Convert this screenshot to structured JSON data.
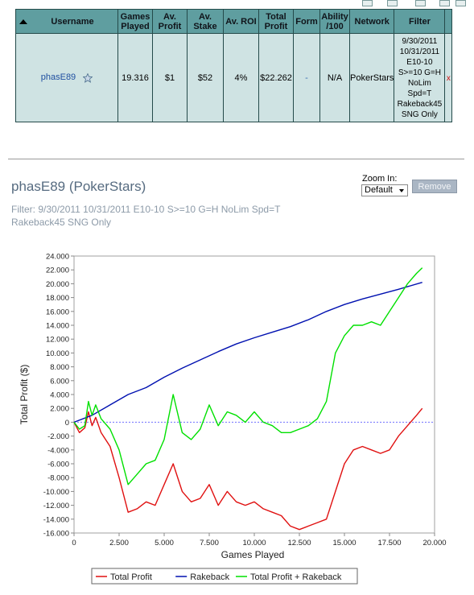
{
  "table": {
    "headers": [
      "Username",
      "Games Played",
      "Av. Profit",
      "Av. Stake",
      "Av. ROI",
      "Total Profit",
      "Form",
      "Ability /100",
      "Network",
      "Filter"
    ],
    "row": {
      "username": "phasE89",
      "games_played": "19.316",
      "av_profit": "$1",
      "av_stake": "$52",
      "av_roi": "4%",
      "total_profit": "$22.262",
      "form": "-",
      "ability": "N/A",
      "network": "PokerStars",
      "filter": "9/30/2011 10/31/2011 E10-10 S>=10 G=H NoLim Spd=T Rakeback45 SNG Only",
      "remove": "x"
    }
  },
  "panel": {
    "title": "phasE89 (PokerStars)",
    "filter_text": "Filter: 9/30/2011 10/31/2011 E10-10 S>=10 G=H NoLim Spd=T Rakeback45 SNG Only",
    "zoom_label": "Zoom In:",
    "zoom_value": "Default",
    "remove_label": "Remove"
  },
  "colors": {
    "header_bg": "#5f9ea0",
    "row_bg": "#cfe3e3",
    "total_profit": "#e01010",
    "rakeback": "#0010b0",
    "total_plus_rakeback": "#00e000"
  },
  "chart_data": {
    "type": "line",
    "xlabel": "Games Played",
    "ylabel": "Total Profit ($)",
    "xlim": [
      0,
      20000
    ],
    "ylim": [
      -16000,
      24000
    ],
    "x_ticks": [
      "0",
      "2.500",
      "5.000",
      "7.500",
      "10.000",
      "12.500",
      "15.000",
      "17.500",
      "20.000"
    ],
    "y_ticks": [
      "24.000",
      "22.000",
      "20.000",
      "18.000",
      "16.000",
      "14.000",
      "12.000",
      "10.000",
      "8.000",
      "6.000",
      "4.000",
      "2.000",
      "0",
      "-2.000",
      "-4.000",
      "-6.000",
      "-8.000",
      "-10.000",
      "-12.000",
      "-14.000",
      "-16.000"
    ],
    "legend_position": "bottom",
    "zero_line": true,
    "series": [
      {
        "name": "Total Profit",
        "color": "#e01010",
        "x": [
          0,
          300,
          600,
          800,
          1000,
          1200,
          1500,
          2000,
          2500,
          3000,
          3500,
          4000,
          4500,
          5000,
          5500,
          6000,
          6500,
          7000,
          7500,
          8000,
          8500,
          9000,
          9500,
          10000,
          10500,
          11000,
          11500,
          12000,
          12500,
          13000,
          13500,
          14000,
          14500,
          15000,
          15500,
          16000,
          16500,
          17000,
          17500,
          18000,
          18500,
          19000,
          19316
        ],
        "y": [
          0,
          -1500,
          -800,
          1500,
          -500,
          700,
          -1500,
          -3500,
          -8000,
          -13000,
          -12500,
          -11500,
          -12000,
          -9000,
          -6000,
          -10000,
          -11500,
          -11000,
          -9000,
          -12000,
          -10000,
          -11500,
          -12000,
          -11500,
          -12500,
          -13000,
          -13500,
          -15000,
          -15500,
          -15000,
          -14500,
          -14000,
          -10000,
          -6000,
          -4000,
          -3500,
          -4000,
          -4500,
          -4000,
          -2000,
          -500,
          1000,
          2000
        ]
      },
      {
        "name": "Rakeback",
        "color": "#0010b0",
        "x": [
          0,
          1000,
          2000,
          3000,
          4000,
          5000,
          6000,
          7000,
          8000,
          9000,
          10000,
          11000,
          12000,
          13000,
          14000,
          15000,
          16000,
          17000,
          18000,
          19316
        ],
        "y": [
          0,
          1000,
          2500,
          4000,
          5000,
          6500,
          7800,
          9000,
          10200,
          11300,
          12200,
          13000,
          13800,
          14800,
          16000,
          17000,
          17800,
          18500,
          19200,
          20200
        ]
      },
      {
        "name": "Total Profit + Rakeback",
        "color": "#00e000",
        "x": [
          0,
          300,
          600,
          800,
          1000,
          1200,
          1500,
          2000,
          2500,
          3000,
          3500,
          4000,
          4500,
          5000,
          5500,
          6000,
          6500,
          7000,
          7500,
          8000,
          8500,
          9000,
          9500,
          10000,
          10500,
          11000,
          11500,
          12000,
          12500,
          13000,
          13500,
          14000,
          14500,
          15000,
          15500,
          16000,
          16500,
          17000,
          17500,
          18000,
          18500,
          19000,
          19316
        ],
        "y": [
          0,
          -1000,
          -500,
          3000,
          1000,
          2500,
          500,
          -1000,
          -4000,
          -9000,
          -7500,
          -6000,
          -5500,
          -2500,
          4000,
          -1500,
          -2500,
          -1000,
          2500,
          -500,
          1500,
          1000,
          0,
          1500,
          0,
          -500,
          -1500,
          -1500,
          -1000,
          -500,
          500,
          3000,
          10000,
          12500,
          14000,
          14000,
          14500,
          14000,
          16000,
          18000,
          20000,
          21500,
          22300
        ]
      }
    ]
  }
}
